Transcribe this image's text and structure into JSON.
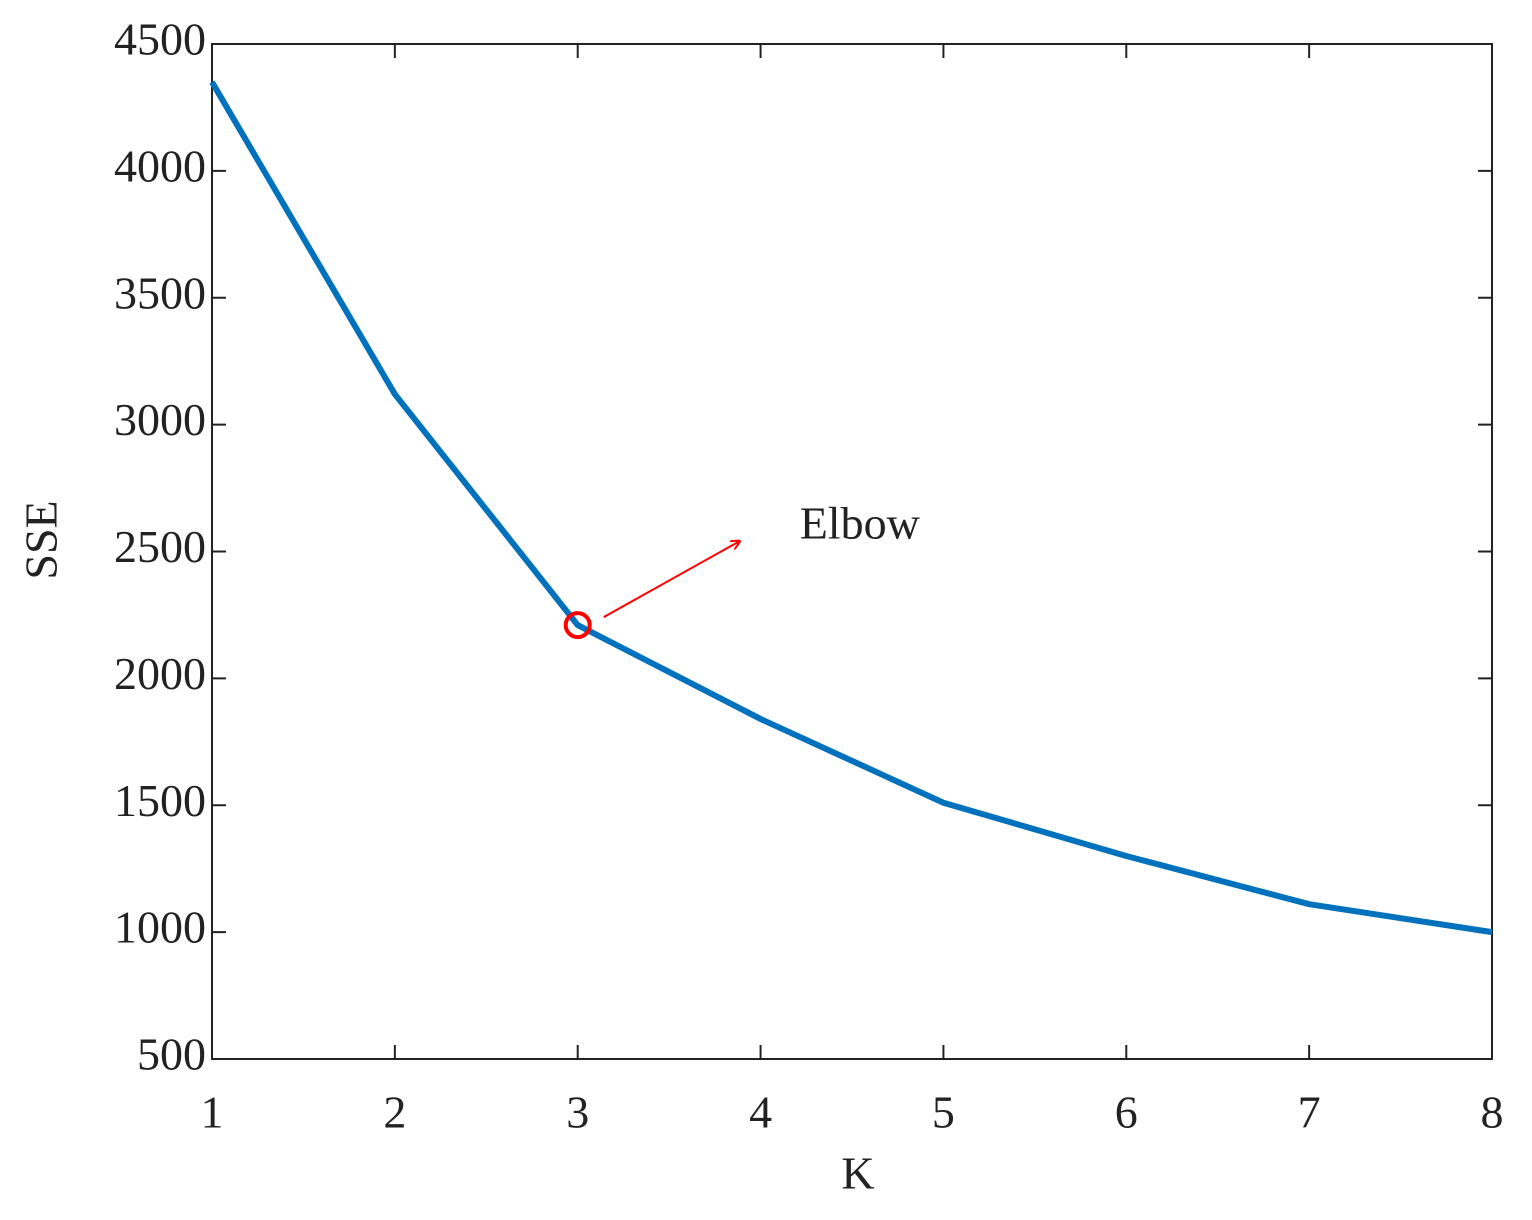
{
  "chart_data": {
    "type": "line",
    "x": [
      1,
      2,
      3,
      4,
      5,
      6,
      7,
      8
    ],
    "values": [
      4350,
      3120,
      2210,
      1840,
      1510,
      1300,
      1110,
      1000
    ],
    "color": "#0072bd",
    "xlabel": "K",
    "ylabel": "SSE",
    "xlim": [
      1,
      8
    ],
    "xticks": [
      1,
      2,
      3,
      4,
      5,
      6,
      7,
      8
    ],
    "ylim": [
      500,
      4500
    ],
    "yticks": [
      500,
      1000,
      1500,
      2000,
      2500,
      3000,
      3500,
      4000,
      4500
    ],
    "grid": false,
    "annotation": {
      "text": "Elbow",
      "point": 2,
      "color": "#ff0000"
    }
  }
}
